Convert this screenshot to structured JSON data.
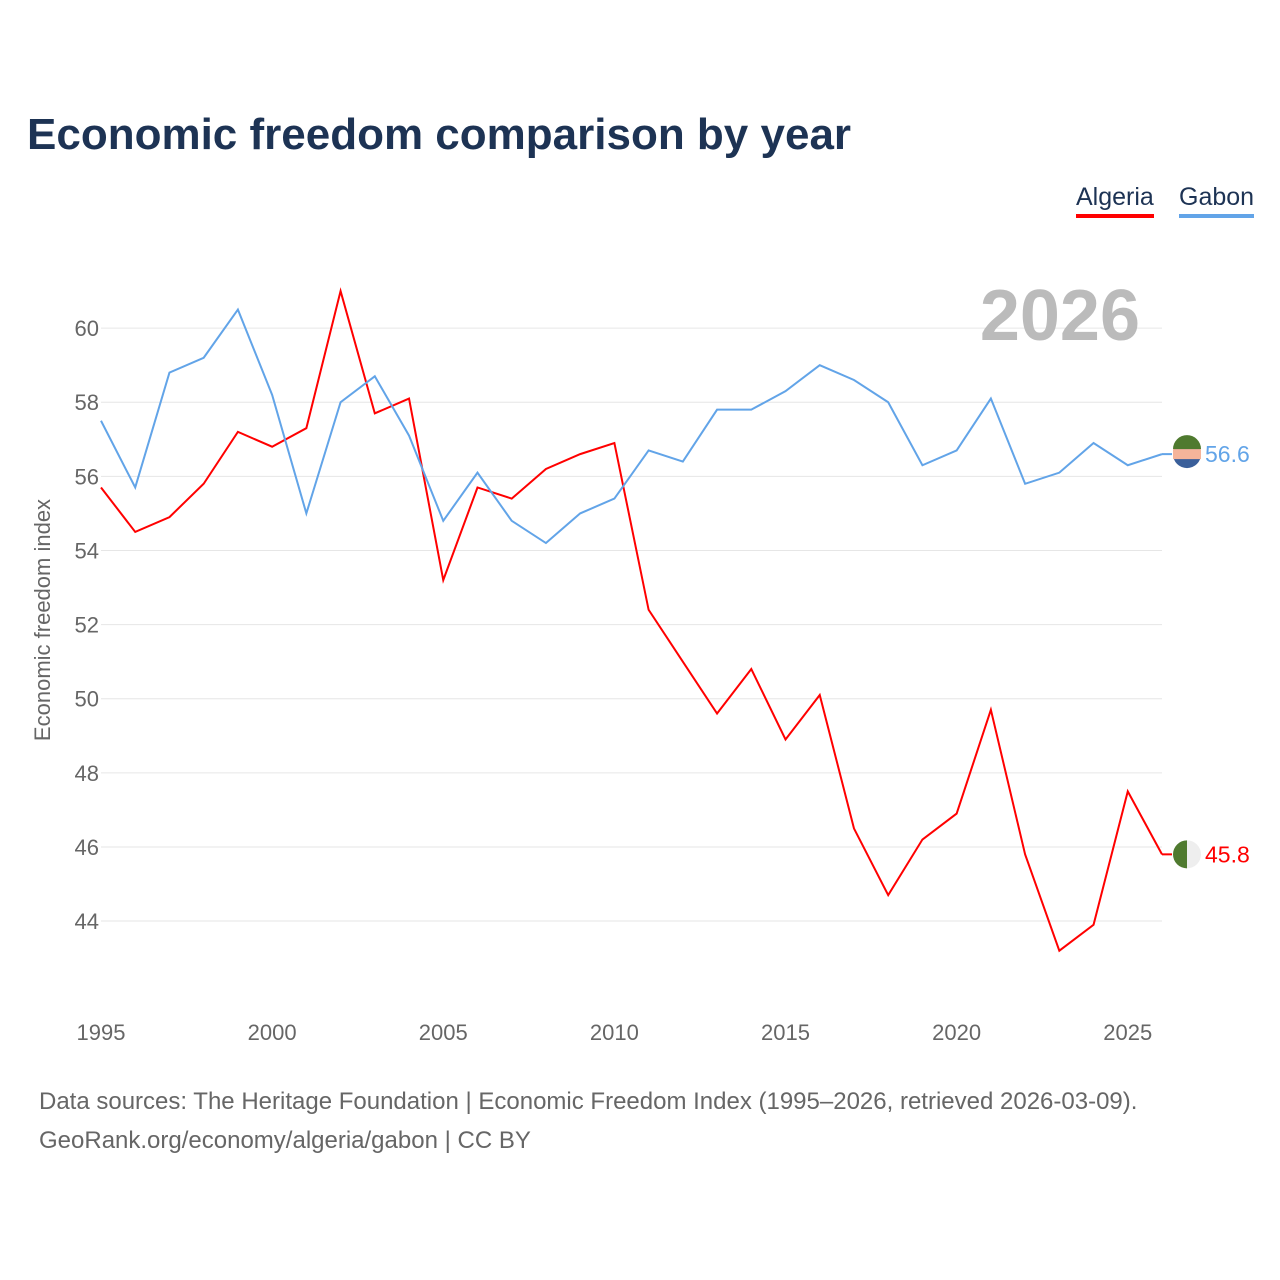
{
  "chart_data": {
    "type": "line",
    "title": "Economic freedom comparison by year",
    "xlabel": "",
    "ylabel": "Economic freedom index",
    "xlim": [
      1995,
      2026
    ],
    "ylim": [
      41.6,
      62
    ],
    "grid": true,
    "legend_position": "top-right",
    "year_label": "2026",
    "x_ticks": [
      1995,
      2000,
      2005,
      2010,
      2015,
      2020,
      2025
    ],
    "y_ticks": [
      44,
      46,
      48,
      50,
      52,
      54,
      56,
      58,
      60
    ],
    "x": [
      1995,
      1996,
      1997,
      1998,
      1999,
      2000,
      2001,
      2002,
      2003,
      2004,
      2005,
      2006,
      2007,
      2008,
      2009,
      2010,
      2011,
      2012,
      2013,
      2014,
      2015,
      2016,
      2017,
      2018,
      2019,
      2020,
      2021,
      2022,
      2023,
      2024,
      2025,
      2026
    ],
    "series": [
      {
        "name": "Algeria",
        "color": "#ff0000",
        "end_label": "45.8",
        "values": [
          55.7,
          54.5,
          54.9,
          55.8,
          57.2,
          56.8,
          57.3,
          61.0,
          57.7,
          58.1,
          53.2,
          55.7,
          55.4,
          56.2,
          56.6,
          56.9,
          52.4,
          51.0,
          49.6,
          50.8,
          48.9,
          50.1,
          46.5,
          44.7,
          46.2,
          46.9,
          49.7,
          45.8,
          43.2,
          43.9,
          47.5,
          45.8
        ]
      },
      {
        "name": "Gabon",
        "color": "#62a4e8",
        "end_label": "56.6",
        "values": [
          57.5,
          55.7,
          58.8,
          59.2,
          60.5,
          58.2,
          55.0,
          58.0,
          58.7,
          57.1,
          54.8,
          56.1,
          54.8,
          54.2,
          55.0,
          55.4,
          56.7,
          56.4,
          57.8,
          57.8,
          58.3,
          59.0,
          58.6,
          58.0,
          56.3,
          56.7,
          58.1,
          55.8,
          56.1,
          56.9,
          56.3,
          56.6
        ]
      }
    ]
  },
  "footer": {
    "line1": "Data sources: The Heritage Foundation | Economic Freedom Index (1995–2026, retrieved 2026-03-09).",
    "line2": "GeoRank.org/economy/algeria/gabon | CC BY"
  }
}
